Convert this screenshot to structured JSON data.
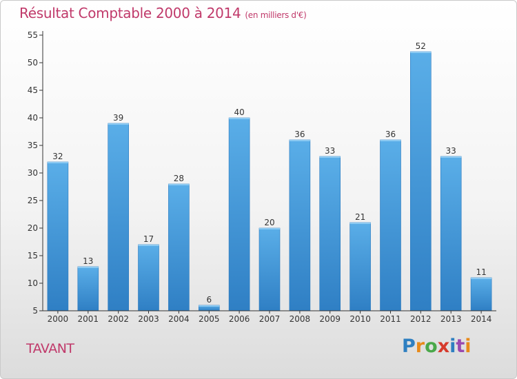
{
  "chart_data": {
    "type": "bar",
    "title": "Résultat Comptable 2000 à 2014",
    "subtitle": "(en milliers d'€)",
    "categories": [
      "2000",
      "2001",
      "2002",
      "2003",
      "2004",
      "2005",
      "2006",
      "2007",
      "2008",
      "2009",
      "2010",
      "2011",
      "2012",
      "2013",
      "2014"
    ],
    "values": [
      32,
      13,
      39,
      17,
      28,
      6,
      40,
      20,
      36,
      33,
      21,
      36,
      52,
      33,
      11
    ],
    "yticks": [
      5,
      10,
      15,
      20,
      25,
      30,
      35,
      40,
      45,
      50,
      55
    ],
    "ylim": [
      5,
      55
    ],
    "xlabel": "",
    "ylabel": "",
    "grid": false,
    "bar_color": "#3f93d8"
  },
  "footer": {
    "town": "TAVANT",
    "logo_letters": [
      {
        "ch": "P",
        "color": "#2e7fc1"
      },
      {
        "ch": "r",
        "color": "#e88a1a"
      },
      {
        "ch": "o",
        "color": "#4aa84a"
      },
      {
        "ch": "x",
        "color": "#d63a2c"
      },
      {
        "ch": "i",
        "color": "#2e7fc1"
      },
      {
        "ch": "t",
        "color": "#9a4ab0"
      },
      {
        "ch": "i",
        "color": "#e88a1a"
      }
    ]
  },
  "colors": {
    "title": "#c0396a",
    "axis": "#333333"
  }
}
